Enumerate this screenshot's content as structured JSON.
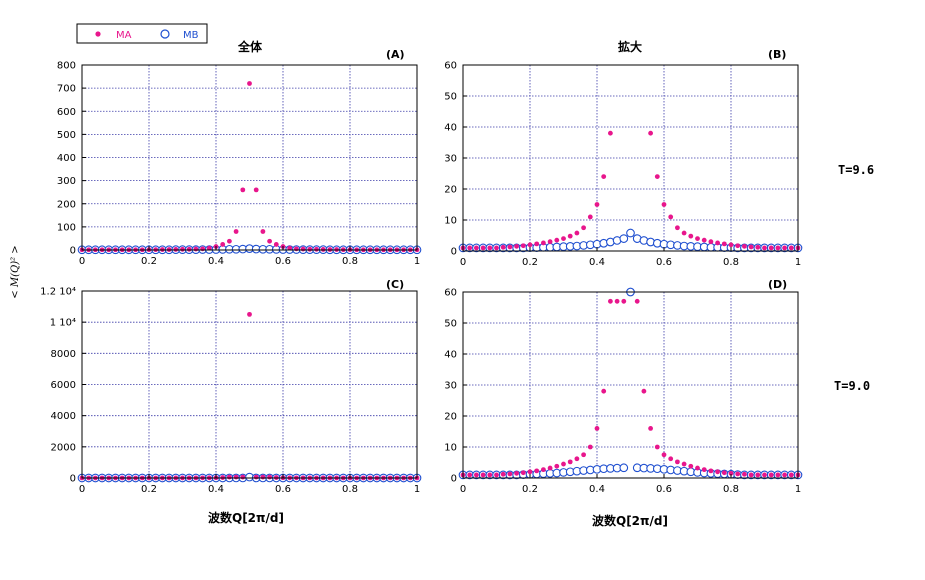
{
  "colors": {
    "ma": "#e8168c",
    "mb": "#1f4fd0",
    "grid": "#3a3aa8"
  },
  "legend": {
    "ma_label": "MA",
    "mb_label": "MB"
  },
  "y_axis_label": "< M(Q)² >",
  "chart_data": [
    {
      "id": "A",
      "type": "scatter",
      "panel_label": "(A)",
      "title": "全体",
      "temperature_label": "",
      "xlim": [
        0,
        1
      ],
      "ylim": [
        0,
        800
      ],
      "xticks": [
        0,
        0.2,
        0.4,
        0.6,
        0.8,
        1
      ],
      "xtick_labels": [
        "0",
        "0.2",
        "0.4",
        "0.6",
        "0.8",
        "1"
      ],
      "yticks": [
        0,
        100,
        200,
        300,
        400,
        500,
        600,
        700,
        800
      ],
      "ytick_labels": [
        "0",
        "100",
        "200",
        "300",
        "400",
        "500",
        "600",
        "700",
        "800"
      ],
      "xlabel": "",
      "series": [
        {
          "name": "MA",
          "marker": "filled-dot",
          "x": [
            0,
            0.02,
            0.04,
            0.06,
            0.08,
            0.1,
            0.12,
            0.14,
            0.16,
            0.18,
            0.2,
            0.22,
            0.24,
            0.26,
            0.28,
            0.3,
            0.32,
            0.34,
            0.36,
            0.38,
            0.4,
            0.42,
            0.44,
            0.46,
            0.48,
            0.5,
            0.52,
            0.54,
            0.56,
            0.58,
            0.6,
            0.62,
            0.64,
            0.66,
            0.68,
            0.7,
            0.72,
            0.74,
            0.76,
            0.78,
            0.8,
            0.82,
            0.84,
            0.86,
            0.88,
            0.9,
            0.92,
            0.94,
            0.96,
            0.98,
            1
          ],
          "y": [
            1,
            1,
            1,
            1,
            1,
            1,
            1,
            1,
            1,
            1,
            1.5,
            1.5,
            2,
            2,
            2.5,
            3,
            3,
            4,
            5,
            8,
            15,
            24,
            38,
            80,
            260,
            720,
            260,
            80,
            38,
            24,
            15,
            8,
            5,
            4,
            3,
            3,
            2.5,
            2,
            2,
            1.5,
            1.5,
            1,
            1,
            1,
            1,
            1,
            1,
            1,
            1,
            1,
            1
          ]
        },
        {
          "name": "MB",
          "marker": "open-circle",
          "x": [
            0,
            0.02,
            0.04,
            0.06,
            0.08,
            0.1,
            0.12,
            0.14,
            0.16,
            0.18,
            0.2,
            0.22,
            0.24,
            0.26,
            0.28,
            0.3,
            0.32,
            0.34,
            0.36,
            0.38,
            0.4,
            0.42,
            0.44,
            0.46,
            0.48,
            0.5,
            0.52,
            0.54,
            0.56,
            0.58,
            0.6,
            0.62,
            0.64,
            0.66,
            0.68,
            0.7,
            0.72,
            0.74,
            0.76,
            0.78,
            0.8,
            0.82,
            0.84,
            0.86,
            0.88,
            0.9,
            0.92,
            0.94,
            0.96,
            0.98,
            1
          ],
          "y": [
            1,
            1,
            1,
            1,
            1,
            1,
            1,
            1,
            1,
            1,
            1,
            1,
            1,
            1,
            1.5,
            1.5,
            1.5,
            1.5,
            2,
            2,
            2,
            2.5,
            3,
            3,
            4,
            6,
            4,
            3,
            3,
            2.5,
            2,
            2,
            2,
            1.5,
            1.5,
            1.5,
            1.5,
            1,
            1,
            1,
            1,
            1,
            1,
            1,
            1,
            1,
            1,
            1,
            1,
            1,
            1
          ]
        }
      ]
    },
    {
      "id": "B",
      "type": "scatter",
      "panel_label": "(B)",
      "title": "拡大",
      "temperature_label": "T=9.6",
      "xlim": [
        0,
        1
      ],
      "ylim": [
        0,
        60
      ],
      "xticks": [
        0,
        0.2,
        0.4,
        0.6,
        0.8,
        1
      ],
      "xtick_labels": [
        "0",
        "0.2",
        "0.4",
        "0.6",
        "0.8",
        "1"
      ],
      "yticks": [
        0,
        10,
        20,
        30,
        40,
        50,
        60
      ],
      "ytick_labels": [
        "0",
        "10",
        "20",
        "30",
        "40",
        "50",
        "60"
      ],
      "xlabel": "",
      "series": [
        {
          "name": "MA",
          "marker": "filled-dot",
          "x": [
            0,
            0.02,
            0.04,
            0.06,
            0.08,
            0.1,
            0.12,
            0.14,
            0.16,
            0.18,
            0.2,
            0.22,
            0.24,
            0.26,
            0.28,
            0.3,
            0.32,
            0.34,
            0.36,
            0.38,
            0.4,
            0.42,
            0.44,
            0.56,
            0.58,
            0.6,
            0.62,
            0.64,
            0.66,
            0.68,
            0.7,
            0.72,
            0.74,
            0.76,
            0.78,
            0.8,
            0.82,
            0.84,
            0.86,
            0.88,
            0.9,
            0.92,
            0.94,
            0.96,
            0.98,
            1
          ],
          "y": [
            1,
            1,
            1,
            1,
            1,
            1,
            1.2,
            1.3,
            1.5,
            1.7,
            2,
            2.3,
            2.6,
            3,
            3.5,
            4,
            4.8,
            5.8,
            7.5,
            11,
            15,
            24,
            38,
            38,
            24,
            15,
            11,
            7.5,
            5.8,
            4.8,
            4,
            3.5,
            3,
            2.6,
            2.3,
            2,
            1.7,
            1.5,
            1.3,
            1.2,
            1,
            1,
            1,
            1,
            1,
            1
          ]
        },
        {
          "name": "MB",
          "marker": "open-circle",
          "x": [
            0,
            0.02,
            0.04,
            0.06,
            0.08,
            0.1,
            0.12,
            0.14,
            0.16,
            0.18,
            0.2,
            0.22,
            0.24,
            0.26,
            0.28,
            0.3,
            0.32,
            0.34,
            0.36,
            0.38,
            0.4,
            0.42,
            0.44,
            0.46,
            0.48,
            0.5,
            0.52,
            0.54,
            0.56,
            0.58,
            0.6,
            0.62,
            0.64,
            0.66,
            0.68,
            0.7,
            0.72,
            0.74,
            0.76,
            0.78,
            0.8,
            0.82,
            0.84,
            0.86,
            0.88,
            0.9,
            0.92,
            0.94,
            0.96,
            0.98,
            1
          ],
          "y": [
            1,
            1,
            1,
            1,
            1,
            1,
            1,
            1,
            1,
            1,
            1.1,
            1.1,
            1.2,
            1.2,
            1.3,
            1.4,
            1.5,
            1.6,
            1.8,
            2,
            2.2,
            2.5,
            2.9,
            3.4,
            4,
            5.8,
            4,
            3.4,
            2.9,
            2.5,
            2.2,
            2,
            1.8,
            1.6,
            1.5,
            1.4,
            1.3,
            1.2,
            1.2,
            1.1,
            1.1,
            1,
            1,
            1,
            1,
            1,
            1,
            1,
            1,
            1,
            1
          ]
        }
      ]
    },
    {
      "id": "C",
      "type": "scatter",
      "panel_label": "(C)",
      "title": "",
      "temperature_label": "",
      "xlim": [
        0,
        1
      ],
      "ylim": [
        0,
        12000
      ],
      "xticks": [
        0,
        0.2,
        0.4,
        0.6,
        0.8,
        1
      ],
      "xtick_labels": [
        "0",
        "0.2",
        "0.4",
        "0.6",
        "0.8",
        "1"
      ],
      "yticks": [
        0,
        2000,
        4000,
        6000,
        8000,
        10000,
        12000
      ],
      "ytick_labels": [
        "0",
        "2000",
        "4000",
        "6000",
        "8000",
        "1 10⁴",
        "1.2 10⁴"
      ],
      "xlabel": "波数Q[2π/d]",
      "series": [
        {
          "name": "MA",
          "marker": "filled-dot",
          "x": [
            0,
            0.02,
            0.04,
            0.06,
            0.08,
            0.1,
            0.12,
            0.14,
            0.16,
            0.18,
            0.2,
            0.22,
            0.24,
            0.26,
            0.28,
            0.3,
            0.32,
            0.34,
            0.36,
            0.38,
            0.4,
            0.42,
            0.44,
            0.46,
            0.48,
            0.5,
            0.52,
            0.54,
            0.56,
            0.58,
            0.6,
            0.62,
            0.64,
            0.66,
            0.68,
            0.7,
            0.72,
            0.74,
            0.76,
            0.78,
            0.8,
            0.82,
            0.84,
            0.86,
            0.88,
            0.9,
            0.92,
            0.94,
            0.96,
            0.98,
            1
          ],
          "y": [
            1,
            1,
            1,
            1,
            1,
            1,
            1,
            1,
            1,
            1,
            2,
            2,
            3,
            3,
            4,
            5,
            6,
            7,
            9,
            12,
            16,
            28,
            57,
            57,
            57,
            10500,
            57,
            57,
            57,
            28,
            16,
            12,
            9,
            7,
            6,
            5,
            4,
            3,
            3,
            2,
            2,
            1,
            1,
            1,
            1,
            1,
            1,
            1,
            1,
            1,
            1
          ]
        },
        {
          "name": "MB",
          "marker": "open-circle",
          "x": [
            0,
            0.02,
            0.04,
            0.06,
            0.08,
            0.1,
            0.12,
            0.14,
            0.16,
            0.18,
            0.2,
            0.22,
            0.24,
            0.26,
            0.28,
            0.3,
            0.32,
            0.34,
            0.36,
            0.38,
            0.4,
            0.42,
            0.44,
            0.46,
            0.48,
            0.5,
            0.52,
            0.54,
            0.56,
            0.58,
            0.6,
            0.62,
            0.64,
            0.66,
            0.68,
            0.7,
            0.72,
            0.74,
            0.76,
            0.78,
            0.8,
            0.82,
            0.84,
            0.86,
            0.88,
            0.9,
            0.92,
            0.94,
            0.96,
            0.98,
            1
          ],
          "y": [
            1,
            1,
            1,
            1,
            1,
            1,
            1,
            1,
            1,
            1,
            1,
            1,
            1,
            1,
            1,
            1,
            1,
            1,
            2,
            2,
            2,
            2,
            3,
            3,
            3,
            60,
            3,
            3,
            3,
            2,
            2,
            2,
            2,
            1,
            1,
            1,
            1,
            1,
            1,
            1,
            1,
            1,
            1,
            1,
            1,
            1,
            1,
            1,
            1,
            1,
            1
          ]
        }
      ]
    },
    {
      "id": "D",
      "type": "scatter",
      "panel_label": "(D)",
      "title": "",
      "temperature_label": "T=9.0",
      "xlim": [
        0,
        1
      ],
      "ylim": [
        0,
        60
      ],
      "xticks": [
        0,
        0.2,
        0.4,
        0.6,
        0.8,
        1
      ],
      "xtick_labels": [
        "0",
        "0.2",
        "0.4",
        "0.6",
        "0.8",
        "1"
      ],
      "yticks": [
        0,
        10,
        20,
        30,
        40,
        50,
        60
      ],
      "ytick_labels": [
        "0",
        "10",
        "20",
        "30",
        "40",
        "50",
        "60"
      ],
      "xlabel": "波数Q[2π/d]",
      "series": [
        {
          "name": "MA",
          "marker": "filled-dot",
          "x": [
            0,
            0.02,
            0.04,
            0.06,
            0.08,
            0.1,
            0.12,
            0.14,
            0.16,
            0.18,
            0.2,
            0.22,
            0.24,
            0.26,
            0.28,
            0.3,
            0.32,
            0.34,
            0.36,
            0.38,
            0.4,
            0.42,
            0.44,
            0.46,
            0.48,
            0.52,
            0.54,
            0.56,
            0.58,
            0.6,
            0.62,
            0.64,
            0.66,
            0.68,
            0.7,
            0.72,
            0.74,
            0.76,
            0.78,
            0.8,
            0.82,
            0.84,
            0.86,
            0.88,
            0.9,
            0.92,
            0.94,
            0.96,
            0.98,
            1
          ],
          "y": [
            1,
            1,
            1,
            1,
            1,
            1,
            1.2,
            1.3,
            1.5,
            1.7,
            2,
            2.3,
            2.7,
            3.2,
            3.8,
            4.5,
            5.2,
            6.2,
            7.5,
            10,
            16,
            28,
            57,
            57,
            57,
            57,
            28,
            16,
            10,
            7.5,
            6.2,
            5.2,
            4.5,
            3.8,
            3.2,
            2.7,
            2.3,
            2,
            1.7,
            1.5,
            1.3,
            1.2,
            1,
            1,
            1,
            1,
            1,
            1,
            1,
            1
          ]
        },
        {
          "name": "MB",
          "marker": "open-circle",
          "x": [
            0,
            0.02,
            0.04,
            0.06,
            0.08,
            0.1,
            0.12,
            0.14,
            0.16,
            0.18,
            0.2,
            0.22,
            0.24,
            0.26,
            0.28,
            0.3,
            0.32,
            0.34,
            0.36,
            0.38,
            0.4,
            0.42,
            0.44,
            0.46,
            0.48,
            0.5,
            0.52,
            0.54,
            0.56,
            0.58,
            0.6,
            0.62,
            0.64,
            0.66,
            0.68,
            0.7,
            0.72,
            0.74,
            0.76,
            0.78,
            0.8,
            0.82,
            0.84,
            0.86,
            0.88,
            0.9,
            0.92,
            0.94,
            0.96,
            0.98,
            1
          ],
          "y": [
            1,
            1,
            1,
            1,
            1,
            1,
            1,
            1,
            1,
            1.1,
            1.2,
            1.3,
            1.4,
            1.5,
            1.6,
            1.8,
            2,
            2.2,
            2.4,
            2.6,
            2.8,
            3,
            3.1,
            3.2,
            3.3,
            60,
            3.3,
            3.2,
            3.1,
            3,
            2.8,
            2.6,
            2.4,
            2.2,
            2,
            1.8,
            1.6,
            1.5,
            1.4,
            1.3,
            1.2,
            1.1,
            1,
            1,
            1,
            1,
            1,
            1,
            1,
            1,
            1
          ]
        }
      ]
    }
  ]
}
